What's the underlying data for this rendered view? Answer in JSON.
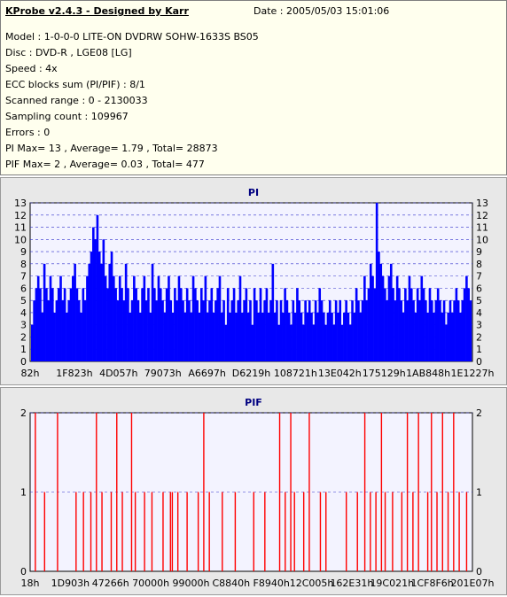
{
  "info": {
    "title": "KProbe v2.4.3 - Designed by Karr",
    "date": "Date : 2005/05/03 15:01:06",
    "lines": [
      "Model : 1-0-0-0 LITE-ON DVDRW SOHW-1633S BS05",
      "Disc : DVD-R , LGE08 [LG]",
      "Speed : 4x",
      "ECC blocks sum (PI/PIF) : 8/1",
      "Scanned range : 0 - 2130033",
      "Sampling count : 109967",
      "Errors : 0",
      "PI Max= 13 , Average= 1.79 , Total= 28873",
      "PIF Max= 2 , Average= 0.03 , Total= 477"
    ]
  },
  "colors": {
    "pi_bars": "#0000ff",
    "pif_bars": "#ff0000",
    "plot_bg": "#f3f3ff",
    "grid": "#3333cc",
    "panel_bg": "#e8e8e8",
    "info_bg": "#ffffee",
    "title": "#000080"
  },
  "chart_data": [
    {
      "type": "bar",
      "title": "PI",
      "ylim": [
        0,
        13
      ],
      "yticks": [
        0,
        1,
        2,
        3,
        4,
        5,
        6,
        7,
        8,
        9,
        10,
        11,
        12,
        13
      ],
      "xtick_labels": [
        "82h",
        "1F823h",
        "4D057h",
        "79073h",
        "A6697h",
        "D6219h",
        "108721h",
        "13E042h",
        "175129h",
        "1AB848h",
        "1E1227h"
      ],
      "grid": true,
      "series": [
        {
          "values": [
            3,
            5,
            6,
            7,
            6,
            4,
            8,
            6,
            5,
            7,
            6,
            4,
            5,
            6,
            7,
            5,
            6,
            4,
            5,
            6,
            7,
            8,
            6,
            5,
            4,
            6,
            5,
            7,
            8,
            9,
            11,
            10,
            12,
            9,
            8,
            10,
            7,
            6,
            8,
            9,
            7,
            6,
            5,
            7,
            6,
            5,
            8,
            6,
            4,
            5,
            7,
            6,
            5,
            4,
            6,
            7,
            5,
            6,
            4,
            8,
            6,
            5,
            7,
            6,
            5,
            4,
            6,
            7,
            5,
            4,
            6,
            5,
            7,
            6,
            5,
            4,
            6,
            5,
            4,
            7,
            6,
            5,
            4,
            6,
            5,
            7,
            4,
            5,
            6,
            4,
            5,
            6,
            7,
            4,
            5,
            3,
            6,
            4,
            5,
            6,
            4,
            5,
            7,
            4,
            5,
            6,
            4,
            5,
            3,
            6,
            5,
            4,
            6,
            4,
            5,
            6,
            4,
            5,
            8,
            4,
            5,
            3,
            5,
            4,
            6,
            5,
            4,
            3,
            5,
            4,
            6,
            5,
            4,
            3,
            5,
            4,
            5,
            4,
            3,
            5,
            4,
            6,
            5,
            4,
            3,
            4,
            5,
            4,
            3,
            5,
            4,
            5,
            3,
            4,
            5,
            4,
            3,
            5,
            4,
            6,
            5,
            4,
            5,
            7,
            5,
            6,
            8,
            7,
            6,
            13,
            9,
            8,
            7,
            6,
            5,
            7,
            8,
            6,
            5,
            7,
            6,
            5,
            4,
            6,
            5,
            7,
            6,
            5,
            4,
            6,
            5,
            7,
            6,
            5,
            4,
            6,
            5,
            4,
            5,
            6,
            5,
            4,
            5,
            3,
            4,
            5,
            4,
            5,
            6,
            5,
            4,
            5,
            6,
            7,
            6,
            5
          ]
        }
      ]
    },
    {
      "type": "bar",
      "title": "PIF",
      "ylim": [
        0,
        2
      ],
      "yticks": [
        0,
        1,
        2
      ],
      "xtick_labels": [
        "18h",
        "1D903h",
        "47266h",
        "70000h",
        "99000h",
        "C8840h",
        "F8940h",
        "12C005h",
        "162E31h",
        "19C021h",
        "1CF8F6h",
        "201E07h"
      ],
      "grid": true,
      "series": [
        {
          "values": [
            0,
            0,
            2,
            0,
            0,
            0,
            0,
            1,
            0,
            0,
            0,
            0,
            0,
            0,
            2,
            0,
            0,
            0,
            0,
            0,
            0,
            0,
            0,
            0,
            1,
            0,
            0,
            0,
            1,
            0,
            0,
            0,
            1,
            0,
            0,
            2,
            0,
            0,
            1,
            0,
            0,
            0,
            0,
            1,
            0,
            0,
            2,
            0,
            0,
            1,
            0,
            0,
            0,
            0,
            2,
            0,
            1,
            0,
            0,
            0,
            0,
            1,
            0,
            0,
            0,
            1,
            0,
            0,
            0,
            0,
            0,
            1,
            0,
            0,
            0,
            1,
            1,
            0,
            0,
            1,
            0,
            0,
            0,
            0,
            1,
            0,
            0,
            0,
            0,
            0,
            1,
            0,
            0,
            2,
            0,
            0,
            1,
            0,
            0,
            0,
            0,
            0,
            0,
            1,
            0,
            0,
            0,
            0,
            0,
            0,
            1,
            0,
            0,
            0,
            0,
            0,
            0,
            0,
            0,
            0,
            1,
            0,
            0,
            0,
            0,
            0,
            1,
            0,
            0,
            0,
            0,
            0,
            0,
            0,
            2,
            0,
            0,
            1,
            0,
            0,
            2,
            0,
            1,
            0,
            0,
            0,
            0,
            1,
            0,
            0,
            2,
            0,
            0,
            0,
            0,
            0,
            1,
            0,
            0,
            1,
            0,
            0,
            0,
            0,
            0,
            0,
            0,
            0,
            0,
            0,
            1,
            0,
            0,
            0,
            0,
            0,
            1,
            0,
            0,
            0,
            2,
            0,
            0,
            1,
            0,
            0,
            1,
            0,
            0,
            2,
            0,
            1,
            0,
            0,
            0,
            1,
            0,
            0,
            0,
            0,
            1,
            0,
            0,
            2,
            0,
            0,
            1,
            0,
            0,
            2,
            0,
            0,
            0,
            0,
            1,
            0,
            2,
            0,
            0,
            1,
            0,
            0,
            2,
            0,
            0,
            1,
            0,
            0,
            2,
            0,
            0,
            1,
            0,
            0,
            0,
            1,
            0,
            0
          ]
        }
      ]
    }
  ]
}
